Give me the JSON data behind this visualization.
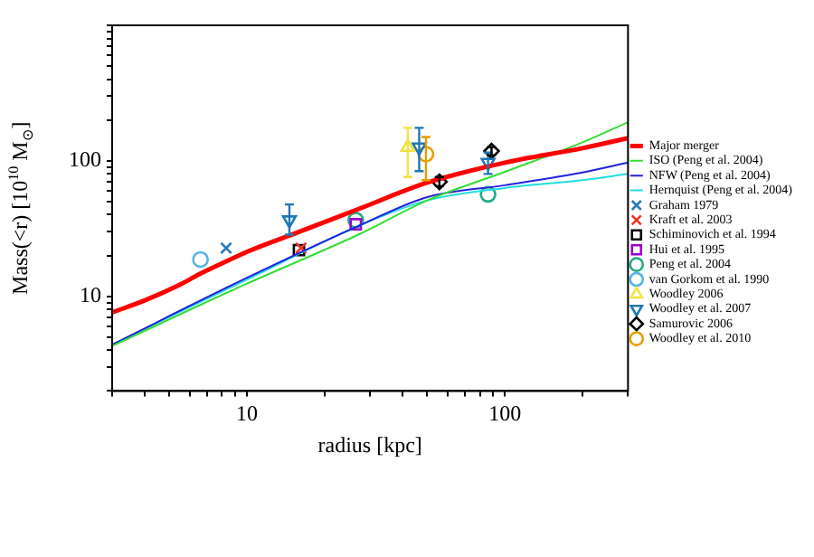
{
  "chart_data": {
    "type": "scatter",
    "xlabel": "radius [kpc]",
    "ylabel": "Mass(<r) [10$^{10}$ M$_{⊙}$]",
    "log": "xy",
    "grid": false,
    "legend": "right",
    "xlim": [
      3,
      300
    ],
    "ylim": [
      2,
      1000
    ],
    "xticks": [
      {
        "value": 3,
        "label": null
      },
      {
        "value": 4,
        "label": null
      },
      {
        "value": 5,
        "label": null
      },
      {
        "value": 6,
        "label": null
      },
      {
        "value": 7,
        "label": null
      },
      {
        "value": 8,
        "label": null
      },
      {
        "value": 9,
        "label": null
      },
      10,
      {
        "value": 20,
        "label": null
      },
      {
        "value": 30,
        "label": null
      },
      {
        "value": 40,
        "label": null
      },
      {
        "value": 50,
        "label": null
      },
      {
        "value": 60,
        "label": null
      },
      {
        "value": 70,
        "label": null
      },
      {
        "value": 80,
        "label": null
      },
      {
        "value": 90,
        "label": null
      },
      100,
      {
        "value": 200,
        "label": null
      },
      {
        "value": 300,
        "label": null
      }
    ],
    "yticks": [
      {
        "value": 2,
        "label": null
      },
      {
        "value": 3,
        "label": null
      },
      {
        "value": 4,
        "label": null
      },
      {
        "value": 5,
        "label": null
      },
      {
        "value": 6,
        "label": null
      },
      {
        "value": 7,
        "label": null
      },
      {
        "value": 8,
        "label": null
      },
      {
        "value": 9,
        "label": null
      },
      10,
      {
        "value": 20,
        "label": null
      },
      {
        "value": 30,
        "label": null
      },
      {
        "value": 40,
        "label": null
      },
      {
        "value": 50,
        "label": null
      },
      {
        "value": 60,
        "label": null
      },
      {
        "value": 70,
        "label": null
      },
      {
        "value": 80,
        "label": null
      },
      {
        "value": 90,
        "label": null
      },
      100,
      {
        "value": 200,
        "label": null
      },
      {
        "value": 300,
        "label": null
      },
      {
        "value": 400,
        "label": null
      },
      {
        "value": 500,
        "label": null
      },
      {
        "value": 600,
        "label": null
      },
      {
        "value": 700,
        "label": null
      },
      {
        "value": 800,
        "label": null
      },
      {
        "value": 900,
        "label": null
      },
      {
        "value": 1000,
        "label": null
      }
    ],
    "series": [
      {
        "name": "Major merger",
        "type": "line",
        "color": "#ff0000",
        "x": [
          3,
          4,
          5.5,
          6.5,
          8,
          10,
          16,
          27,
          50,
          100,
          200,
          300
        ],
        "values": [
          7.6,
          9.3,
          12.2,
          14.5,
          17.5,
          21.3,
          30,
          44,
          69,
          97,
          124,
          147
        ]
      },
      {
        "name": "ISO (Peng et al. 2004)",
        "type": "line",
        "color": "#33dd33",
        "x": [
          3,
          10,
          27,
          50,
          100,
          200,
          300
        ],
        "values": [
          4.3,
          12.4,
          28.5,
          51,
          83,
          137,
          193
        ]
      },
      {
        "name": "NFW (Peng et al. 2004)",
        "type": "line",
        "color": "#2222dd",
        "x": [
          3,
          10,
          27,
          50,
          100,
          200,
          300
        ],
        "values": [
          4.4,
          13.7,
          33,
          54,
          66,
          82,
          97
        ]
      },
      {
        "name": "Hernquist (Peng et al. 2004)",
        "type": "line",
        "color": "#22dddd",
        "x": [
          3,
          10,
          27,
          50,
          100,
          200,
          300
        ],
        "values": [
          4.4,
          13.3,
          33,
          51,
          63,
          72,
          80
        ]
      },
      {
        "name": "Graham 1979",
        "marker": "cross",
        "color": "#2a7ab8",
        "x": [
          8.3
        ],
        "values": [
          22.7
        ]
      },
      {
        "name": "Kraft et al. 2003",
        "marker": "cross",
        "color": "#ee3322",
        "x": [
          16.2
        ],
        "values": [
          22.7
        ]
      },
      {
        "name": "Schiminovich et al. 1994",
        "marker": "square",
        "color": "#000000",
        "x": [
          15.9
        ],
        "values": [
          21.9
        ]
      },
      {
        "name": "Hui et al. 1995",
        "marker": "square",
        "color": "#9900cc",
        "x": [
          26.4
        ],
        "values": [
          34
        ]
      },
      {
        "name": "Peng et al. 2004",
        "marker": "circle",
        "color": "#22aa88",
        "x": [
          26.4,
          86
        ],
        "values": [
          36.5,
          56.6
        ]
      },
      {
        "name": "van Gorkom et al. 1990",
        "marker": "circle",
        "color": "#56b4e9",
        "x": [
          6.6
        ],
        "values": [
          18.7
        ]
      },
      {
        "name": "Woodley 2006",
        "marker": "triangle",
        "color": "#f0e442",
        "x": [
          42
        ],
        "values": [
          126
        ],
        "errors": [
          [
            76,
            175
          ]
        ]
      },
      {
        "name": "Woodley et al. 2007",
        "marker": "triangle-down",
        "color": "#1f78b4",
        "x": [
          14.6,
          46.5,
          86
        ],
        "values": [
          36.5,
          126,
          97
        ],
        "errors": [
          [
            28.5,
            47.6
          ],
          [
            84,
            175
          ],
          [
            80,
            115
          ]
        ]
      },
      {
        "name": "Samurovic 2006",
        "marker": "diamond",
        "color": "#000000",
        "x": [
          55.7,
          88.7
        ],
        "values": [
          70,
          118
        ],
        "errors": [
          [
            65,
            76
          ],
          [
            110,
            126
          ]
        ]
      },
      {
        "name": "Woodley et al. 2010",
        "marker": "circle",
        "color": "#e69f00",
        "x": [
          49.4
        ],
        "values": [
          112
        ],
        "errors": [
          [
            72,
            150
          ]
        ]
      }
    ]
  }
}
